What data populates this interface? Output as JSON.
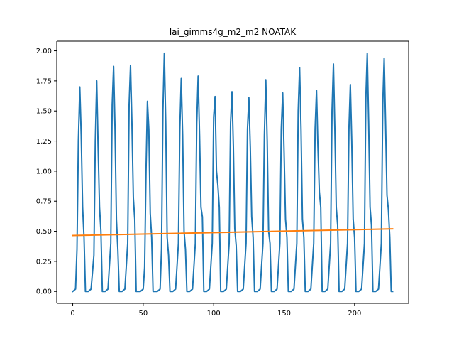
{
  "chart_data": {
    "type": "line",
    "title": "lai_gimms4g_m2_m2 NOATAK",
    "xlabel": "",
    "ylabel": "",
    "xlim": [
      -11.35,
      238.35
    ],
    "ylim": [
      -0.099,
      2.08
    ],
    "x_ticks": [
      0,
      50,
      100,
      150,
      200
    ],
    "x_tick_labels": [
      "0",
      "50",
      "100",
      "150",
      "200"
    ],
    "y_ticks": [
      0.0,
      0.25,
      0.5,
      0.75,
      1.0,
      1.25,
      1.5,
      1.75,
      2.0
    ],
    "y_tick_labels": [
      "0.00",
      "0.25",
      "0.50",
      "0.75",
      "1.00",
      "1.25",
      "1.50",
      "1.75",
      "2.00"
    ],
    "grid": false,
    "series": [
      {
        "color": "#1f77b4",
        "points": [
          [
            0,
            0.0
          ],
          [
            2,
            0.02
          ],
          [
            3,
            0.35
          ],
          [
            4,
            1.25
          ],
          [
            5,
            1.7
          ],
          [
            6,
            1.3
          ],
          [
            7,
            0.7
          ],
          [
            8,
            0.45
          ],
          [
            9,
            0.0
          ],
          [
            11,
            0.0
          ],
          [
            13,
            0.02
          ],
          [
            15,
            0.3
          ],
          [
            16,
            1.25
          ],
          [
            17,
            1.75
          ],
          [
            18,
            1.2
          ],
          [
            19,
            0.7
          ],
          [
            20,
            0.5
          ],
          [
            21,
            0.0
          ],
          [
            23,
            0.0
          ],
          [
            25,
            0.02
          ],
          [
            27,
            0.4
          ],
          [
            28,
            1.55
          ],
          [
            29,
            1.87
          ],
          [
            30,
            1.35
          ],
          [
            31,
            0.6
          ],
          [
            32,
            0.35
          ],
          [
            33,
            0.0
          ],
          [
            35,
            0.0
          ],
          [
            37,
            0.02
          ],
          [
            39,
            0.4
          ],
          [
            40,
            1.55
          ],
          [
            41,
            1.88
          ],
          [
            42,
            1.4
          ],
          [
            43,
            0.78
          ],
          [
            44,
            0.6
          ],
          [
            45,
            0.0
          ],
          [
            48,
            0.0
          ],
          [
            50,
            0.02
          ],
          [
            51,
            0.2
          ],
          [
            52,
            1.0
          ],
          [
            53,
            1.58
          ],
          [
            54,
            1.35
          ],
          [
            55,
            0.65
          ],
          [
            56,
            0.45
          ],
          [
            57,
            0.0
          ],
          [
            60,
            0.0
          ],
          [
            62,
            0.02
          ],
          [
            63,
            0.35
          ],
          [
            64,
            1.5
          ],
          [
            65,
            1.98
          ],
          [
            66,
            1.4
          ],
          [
            67,
            0.45
          ],
          [
            68,
            0.3
          ],
          [
            69,
            0.0
          ],
          [
            71,
            0.0
          ],
          [
            73,
            0.02
          ],
          [
            75,
            0.4
          ],
          [
            76,
            1.35
          ],
          [
            77,
            1.77
          ],
          [
            78,
            1.3
          ],
          [
            79,
            0.5
          ],
          [
            80,
            0.35
          ],
          [
            81,
            0.0
          ],
          [
            83,
            0.0
          ],
          [
            85,
            0.02
          ],
          [
            87,
            0.4
          ],
          [
            88,
            1.4
          ],
          [
            89,
            1.79
          ],
          [
            90,
            1.3
          ],
          [
            91,
            0.7
          ],
          [
            92,
            0.62
          ],
          [
            93,
            0.0
          ],
          [
            95,
            0.0
          ],
          [
            97,
            0.02
          ],
          [
            99,
            0.4
          ],
          [
            100,
            1.45
          ],
          [
            101,
            1.62
          ],
          [
            102,
            1.0
          ],
          [
            103,
            0.88
          ],
          [
            104,
            0.7
          ],
          [
            105,
            0.0
          ],
          [
            107,
            0.0
          ],
          [
            109,
            0.02
          ],
          [
            111,
            0.4
          ],
          [
            112,
            1.4
          ],
          [
            113,
            1.66
          ],
          [
            114,
            1.2
          ],
          [
            115,
            0.52
          ],
          [
            116,
            0.38
          ],
          [
            117,
            0.0
          ],
          [
            119,
            0.0
          ],
          [
            121,
            0.02
          ],
          [
            123,
            0.4
          ],
          [
            124,
            1.35
          ],
          [
            125,
            1.61
          ],
          [
            126,
            1.2
          ],
          [
            127,
            0.62
          ],
          [
            128,
            0.45
          ],
          [
            129,
            0.0
          ],
          [
            131,
            0.0
          ],
          [
            133,
            0.02
          ],
          [
            135,
            0.4
          ],
          [
            136,
            1.3
          ],
          [
            137,
            1.76
          ],
          [
            138,
            1.25
          ],
          [
            139,
            0.5
          ],
          [
            140,
            0.4
          ],
          [
            141,
            0.0
          ],
          [
            143,
            0.0
          ],
          [
            145,
            0.02
          ],
          [
            147,
            0.4
          ],
          [
            148,
            1.35
          ],
          [
            149,
            1.65
          ],
          [
            150,
            1.15
          ],
          [
            151,
            0.6
          ],
          [
            152,
            0.45
          ],
          [
            153,
            0.0
          ],
          [
            155,
            0.0
          ],
          [
            157,
            0.02
          ],
          [
            159,
            0.4
          ],
          [
            160,
            1.5
          ],
          [
            161,
            1.86
          ],
          [
            162,
            1.35
          ],
          [
            163,
            0.6
          ],
          [
            164,
            0.45
          ],
          [
            165,
            0.0
          ],
          [
            167,
            0.0
          ],
          [
            169,
            0.02
          ],
          [
            171,
            0.4
          ],
          [
            172,
            1.35
          ],
          [
            173,
            1.67
          ],
          [
            174,
            1.2
          ],
          [
            175,
            0.83
          ],
          [
            176,
            0.7
          ],
          [
            177,
            0.0
          ],
          [
            179,
            0.0
          ],
          [
            181,
            0.02
          ],
          [
            183,
            0.4
          ],
          [
            184,
            1.5
          ],
          [
            185,
            1.89
          ],
          [
            186,
            1.35
          ],
          [
            187,
            0.7
          ],
          [
            188,
            0.55
          ],
          [
            189,
            0.0
          ],
          [
            191,
            0.0
          ],
          [
            193,
            0.02
          ],
          [
            195,
            0.4
          ],
          [
            196,
            1.35
          ],
          [
            197,
            1.72
          ],
          [
            198,
            1.25
          ],
          [
            199,
            0.6
          ],
          [
            200,
            0.45
          ],
          [
            201,
            0.0
          ],
          [
            203,
            0.0
          ],
          [
            205,
            0.02
          ],
          [
            207,
            0.4
          ],
          [
            208,
            1.6
          ],
          [
            209,
            1.98
          ],
          [
            210,
            1.4
          ],
          [
            211,
            0.7
          ],
          [
            212,
            0.55
          ],
          [
            213,
            0.0
          ],
          [
            215,
            0.0
          ],
          [
            217,
            0.02
          ],
          [
            219,
            0.4
          ],
          [
            220,
            1.55
          ],
          [
            221,
            1.94
          ],
          [
            222,
            1.4
          ],
          [
            223,
            0.8
          ],
          [
            224,
            0.68
          ],
          [
            225,
            0.45
          ],
          [
            226,
            0.0
          ],
          [
            227,
            0.0
          ]
        ]
      },
      {
        "color": "#ff7f0e",
        "points": [
          [
            0,
            0.465
          ],
          [
            227,
            0.52
          ]
        ]
      }
    ]
  }
}
